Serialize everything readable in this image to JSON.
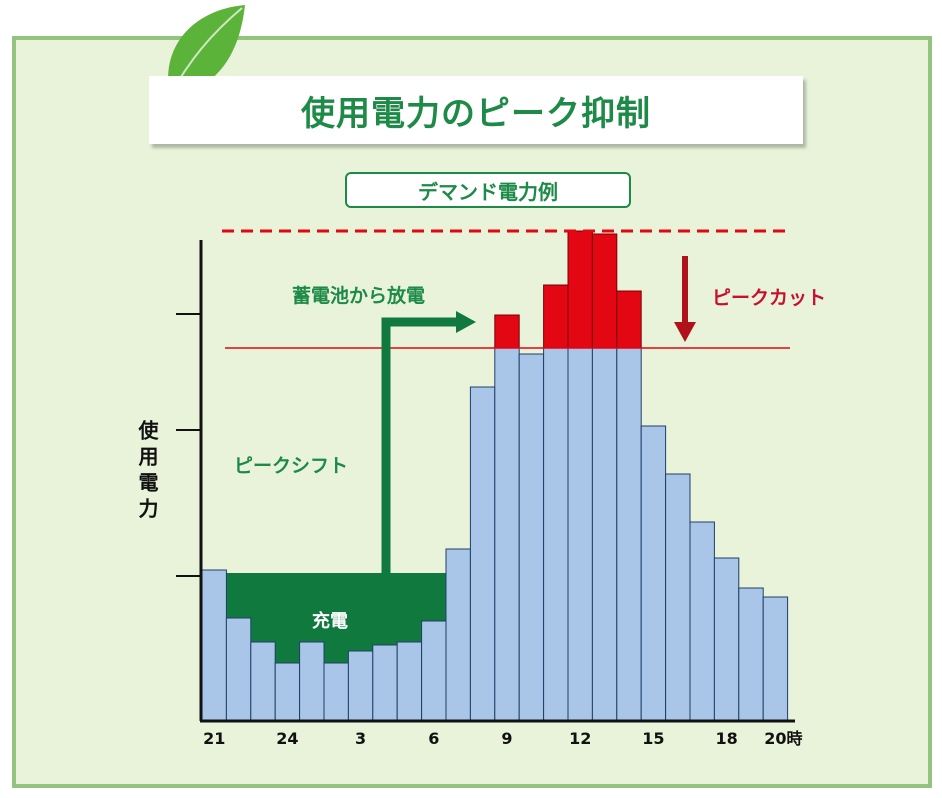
{
  "title": "使用電力のピーク抑制",
  "subtitle": "デマンド電力例",
  "chart_data": {
    "type": "bar",
    "ylabel": "使用電力",
    "x_tick_labels": [
      "21",
      "24",
      "3",
      "6",
      "9",
      "12",
      "15",
      "18",
      "20時"
    ],
    "hours": [
      21,
      22,
      23,
      24,
      1,
      2,
      3,
      4,
      5,
      6,
      7,
      8,
      9,
      10,
      11,
      12,
      13,
      14,
      15,
      16,
      17,
      18,
      19,
      20
    ],
    "demand": [
      50,
      34,
      26,
      19,
      26,
      19,
      23,
      25,
      26,
      33,
      57,
      111,
      124,
      122,
      124,
      124,
      124,
      124,
      98,
      82,
      66,
      54,
      44,
      41
    ],
    "peak_excess": [
      0,
      0,
      0,
      0,
      0,
      0,
      0,
      0,
      0,
      0,
      0,
      0,
      11,
      0,
      21,
      39,
      38,
      19,
      0,
      0,
      0,
      0,
      0,
      0
    ],
    "charge_band_level": 49,
    "peak_level": 163,
    "cut_level": 124,
    "ylim": [
      0,
      170
    ],
    "colors": {
      "bar": "#a9c5e8",
      "peak": "#e30613",
      "charge": "#10793e",
      "text_green": "#1d8a47",
      "text_red": "#c8102e"
    },
    "annotations": {
      "discharge": "蓄電池から放電",
      "peak_cut": "ピークカット",
      "peak_shift": "ピークシフト",
      "charge": "充電"
    }
  }
}
